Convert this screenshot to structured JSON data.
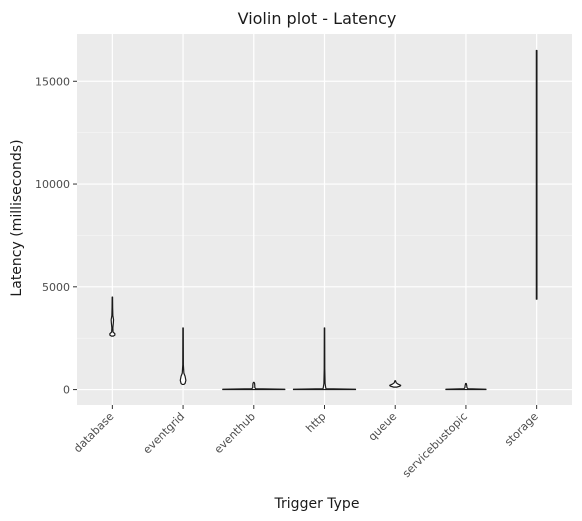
{
  "chart_data": {
    "type": "violin",
    "title": "Violin plot - Latency",
    "xlabel": "Trigger Type",
    "ylabel": "Latency (milliseconds)",
    "categories": [
      "database",
      "eventgrid",
      "eventhub",
      "http",
      "queue",
      "servicebustopic",
      "storage"
    ],
    "y_ticks": [
      0,
      5000,
      10000,
      15000
    ],
    "y_tick_labels": [
      "0",
      "5000",
      "10000",
      "15000"
    ],
    "ylim": [
      -750,
      17300
    ],
    "grid": true,
    "violins": [
      {
        "category": "database",
        "min": 2600,
        "max": 4500,
        "profile": [
          [
            2600,
            0.9
          ],
          [
            2650,
            2.5
          ],
          [
            2720,
            2.5
          ],
          [
            2800,
            0.7
          ],
          [
            3000,
            0.5
          ],
          [
            3250,
            1.0
          ],
          [
            3400,
            1.2
          ],
          [
            3600,
            0.5
          ],
          [
            4000,
            0.3
          ],
          [
            4500,
            0.2
          ]
        ]
      },
      {
        "category": "eventgrid",
        "min": 250,
        "max": 3000,
        "profile": [
          [
            250,
            0.8
          ],
          [
            300,
            2.0
          ],
          [
            450,
            2.8
          ],
          [
            650,
            2.0
          ],
          [
            800,
            0.8
          ],
          [
            1200,
            0.3
          ],
          [
            3000,
            0.2
          ]
        ]
      },
      {
        "category": "eventhub",
        "min": 0,
        "max": 350,
        "profile": [
          [
            0,
            31
          ],
          [
            20,
            31
          ],
          [
            40,
            2
          ],
          [
            100,
            1.0
          ],
          [
            200,
            1.0
          ],
          [
            300,
            0.8
          ],
          [
            350,
            0.3
          ]
        ]
      },
      {
        "category": "http",
        "min": 0,
        "max": 3000,
        "profile": [
          [
            0,
            31
          ],
          [
            20,
            31
          ],
          [
            40,
            1.5
          ],
          [
            100,
            1.2
          ],
          [
            300,
            0.6
          ],
          [
            1000,
            0.3
          ],
          [
            3000,
            0.2
          ]
        ]
      },
      {
        "category": "queue",
        "min": 120,
        "max": 430,
        "profile": [
          [
            120,
            1.5
          ],
          [
            170,
            5
          ],
          [
            210,
            5.5
          ],
          [
            260,
            3
          ],
          [
            330,
            1
          ],
          [
            430,
            0.3
          ]
        ]
      },
      {
        "category": "servicebustopic",
        "min": 0,
        "max": 300,
        "profile": [
          [
            0,
            20
          ],
          [
            20,
            20
          ],
          [
            40,
            2
          ],
          [
            100,
            1.0
          ],
          [
            200,
            0.8
          ],
          [
            300,
            0.3
          ]
        ]
      },
      {
        "category": "storage",
        "min": 4400,
        "max": 16500,
        "profile": [
          [
            4400,
            0.3
          ],
          [
            8000,
            0.3
          ],
          [
            12000,
            0.3
          ],
          [
            16500,
            0.3
          ]
        ]
      }
    ]
  },
  "colors": {
    "panel_background": "#ebebeb",
    "grid_major": "#ffffff",
    "violin_fill": "#ffffff",
    "violin_stroke": "#1a1a1a"
  }
}
